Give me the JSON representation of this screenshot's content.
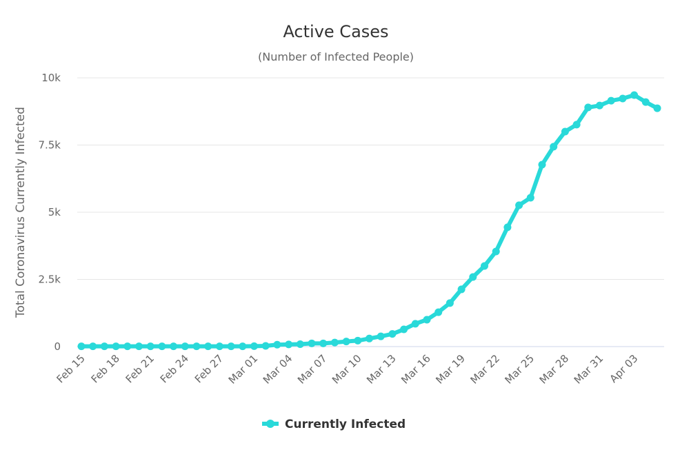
{
  "chart_data": {
    "type": "line",
    "title": "Active Cases",
    "subtitle": "(Number of Infected People)",
    "xlabel": "",
    "ylabel": "Total Coronavirus Currently Infected",
    "ylim": [
      0,
      10000
    ],
    "yticks": [
      0,
      2500,
      5000,
      7500,
      10000
    ],
    "ytick_labels": [
      "0",
      "2.5k",
      "5k",
      "7.5k",
      "10k"
    ],
    "grid": true,
    "legend_position": "bottom",
    "color": "#29d9d9",
    "x": [
      "Feb 15",
      "Feb 16",
      "Feb 17",
      "Feb 18",
      "Feb 19",
      "Feb 20",
      "Feb 21",
      "Feb 22",
      "Feb 23",
      "Feb 24",
      "Feb 25",
      "Feb 26",
      "Feb 27",
      "Feb 28",
      "Feb 29",
      "Mar 01",
      "Mar 02",
      "Mar 03",
      "Mar 04",
      "Mar 05",
      "Mar 06",
      "Mar 07",
      "Mar 08",
      "Mar 09",
      "Mar 10",
      "Mar 11",
      "Mar 12",
      "Mar 13",
      "Mar 14",
      "Mar 15",
      "Mar 16",
      "Mar 17",
      "Mar 18",
      "Mar 19",
      "Mar 20",
      "Mar 21",
      "Mar 22",
      "Mar 23",
      "Mar 24",
      "Mar 25",
      "Mar 26",
      "Mar 27",
      "Mar 28",
      "Mar 29",
      "Mar 30",
      "Mar 31",
      "Apr 01",
      "Apr 02",
      "Apr 03",
      "Apr 04",
      "Apr 05"
    ],
    "xtick_labels": [
      "Feb 15",
      "Feb 18",
      "Feb 21",
      "Feb 24",
      "Feb 27",
      "Mar 01",
      "Mar 04",
      "Mar 07",
      "Mar 10",
      "Mar 13",
      "Mar 16",
      "Mar 19",
      "Mar 22",
      "Mar 25",
      "Mar 28",
      "Mar 31",
      "Apr 03"
    ],
    "series": [
      {
        "name": "Currently Infected",
        "values": [
          10,
          10,
          10,
          10,
          10,
          10,
          10,
          10,
          10,
          10,
          10,
          10,
          10,
          10,
          10,
          15,
          25,
          70,
          80,
          90,
          120,
          120,
          150,
          190,
          220,
          300,
          380,
          470,
          640,
          850,
          1000,
          1280,
          1620,
          2130,
          2590,
          3000,
          3540,
          4440,
          5260,
          5540,
          6770,
          7440,
          8000,
          8260,
          8900,
          8970,
          9150,
          9230,
          9360,
          9100,
          8870
        ]
      }
    ]
  }
}
